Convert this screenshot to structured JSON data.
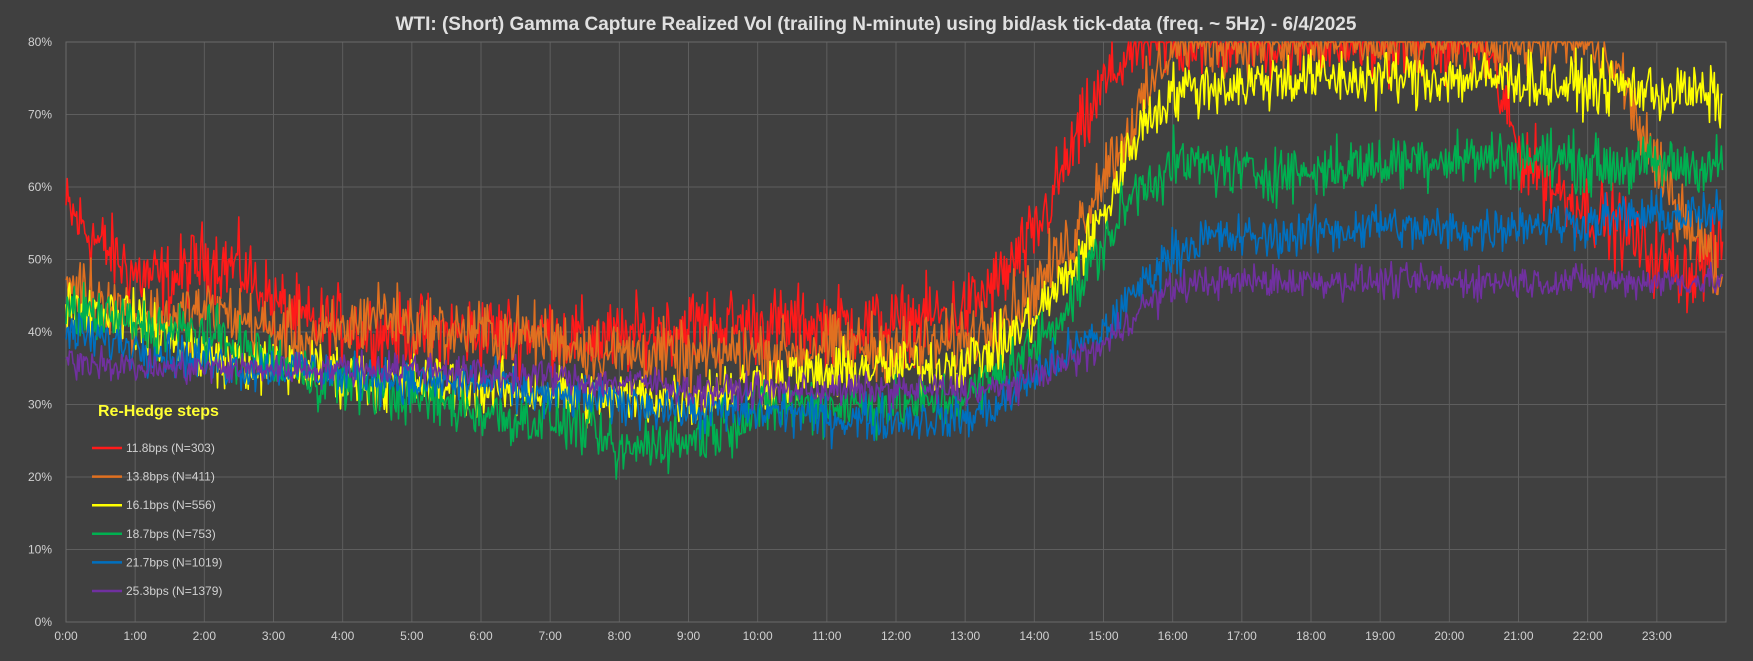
{
  "chart_data": {
    "type": "line",
    "title": "WTI: (Short) Gamma Capture Realized Vol (trailing N-minute) using bid/ask tick-data (freq. ~ 5Hz) - 6/4/2025",
    "xlabel": "",
    "ylabel": "",
    "x_ticks": [
      "0:00",
      "1:00",
      "2:00",
      "3:00",
      "4:00",
      "5:00",
      "6:00",
      "7:00",
      "8:00",
      "9:00",
      "10:00",
      "11:00",
      "12:00",
      "13:00",
      "14:00",
      "15:00",
      "16:00",
      "17:00",
      "18:00",
      "19:00",
      "20:00",
      "21:00",
      "22:00",
      "23:00"
    ],
    "y_ticks": [
      "0%",
      "10%",
      "20%",
      "30%",
      "40%",
      "50%",
      "60%",
      "70%",
      "80%"
    ],
    "xlim": [
      0,
      24
    ],
    "ylim": [
      0,
      80
    ],
    "grid": true,
    "legend_title": "Re-Hedge steps",
    "legend_position": "left",
    "x_hours": [
      0,
      0.5,
      1,
      1.5,
      2,
      2.5,
      3,
      3.5,
      4,
      4.5,
      5,
      5.5,
      6,
      6.5,
      7,
      7.5,
      8,
      8.5,
      9,
      9.5,
      10,
      10.5,
      11,
      11.5,
      12,
      12.5,
      13,
      13.5,
      14,
      14.5,
      15,
      15.5,
      16,
      16.5,
      17,
      17.5,
      18,
      18.5,
      19,
      19.5,
      20,
      20.5,
      21,
      21.5,
      22,
      22.5,
      23,
      23.5,
      23.95
    ],
    "series": [
      {
        "name": "11.8bps  (N=303)",
        "color": "#ff1a1a",
        "noise": 3.2,
        "values": [
          57,
          52,
          48,
          47,
          50,
          49,
          44,
          41,
          41,
          40,
          40,
          40,
          40,
          40,
          40,
          39,
          39,
          40,
          41,
          41,
          41,
          41,
          41,
          41,
          41,
          42,
          43,
          47,
          53,
          64,
          74,
          80,
          80,
          80,
          80,
          80,
          80,
          80,
          80,
          80,
          80,
          80,
          65,
          60,
          57,
          54,
          50,
          48,
          52
        ]
      },
      {
        "name": "13.8bps  (N=411)",
        "color": "#e07020",
        "noise": 2.8,
        "values": [
          47,
          45,
          42,
          42,
          43,
          42,
          40,
          39,
          40,
          43,
          41,
          40,
          40,
          40,
          39,
          38,
          37,
          37,
          36,
          37,
          37,
          37,
          38,
          38,
          38,
          38,
          39,
          42,
          46,
          52,
          62,
          70,
          80,
          80,
          80,
          80,
          80,
          80,
          80,
          80,
          80,
          80,
          80,
          80,
          80,
          75,
          62,
          55,
          47
        ]
      },
      {
        "name": "16.1bps  (N=556)",
        "color": "#ffff00",
        "noise": 2.4,
        "values": [
          44,
          43,
          42,
          39,
          37,
          36,
          35,
          35,
          34,
          33,
          33,
          33,
          32,
          32,
          32,
          31,
          31,
          31,
          31,
          32,
          33,
          34,
          34,
          35,
          35,
          35,
          36,
          38,
          42,
          48,
          56,
          68,
          73,
          74,
          74,
          75,
          75,
          75,
          75,
          75,
          75,
          75,
          75,
          74,
          74,
          74,
          73,
          73,
          72
        ]
      },
      {
        "name": "18.7bps  (N=753)",
        "color": "#00b050",
        "noise": 2.4,
        "values": [
          43,
          42,
          41,
          40,
          40,
          38,
          36,
          34,
          33,
          32,
          31,
          30,
          29,
          28,
          28,
          27,
          23,
          25,
          25,
          27,
          29,
          30,
          30,
          30,
          30,
          30,
          31,
          34,
          38,
          44,
          52,
          60,
          63,
          63,
          62,
          62,
          62,
          63,
          63,
          64,
          64,
          64,
          64,
          64,
          63,
          63,
          63,
          63,
          63
        ]
      },
      {
        "name": "21.7bps  (N=1019)",
        "color": "#0070c0",
        "noise": 1.9,
        "values": [
          40,
          39,
          38,
          37,
          36,
          35,
          35,
          35,
          34,
          34,
          33,
          33,
          33,
          32,
          31,
          31,
          30,
          30,
          29,
          29,
          29,
          29,
          28,
          28,
          28,
          28,
          28,
          30,
          34,
          37,
          40,
          46,
          51,
          53,
          53,
          53,
          54,
          54,
          55,
          54,
          54,
          54,
          55,
          55,
          55,
          56,
          56,
          56,
          56
        ]
      },
      {
        "name": "25.3bps  (N=1379)",
        "color": "#7030a0",
        "noise": 1.4,
        "values": [
          36,
          36,
          35,
          35,
          35,
          35,
          35,
          35,
          35,
          35,
          35,
          35,
          34,
          34,
          34,
          33,
          33,
          33,
          32,
          32,
          32,
          32,
          32,
          32,
          32,
          32,
          32,
          32,
          34,
          36,
          38,
          43,
          46,
          47,
          47,
          47,
          47,
          47,
          47,
          47,
          47,
          47,
          47,
          47,
          47,
          47,
          47,
          47,
          47
        ]
      }
    ]
  }
}
